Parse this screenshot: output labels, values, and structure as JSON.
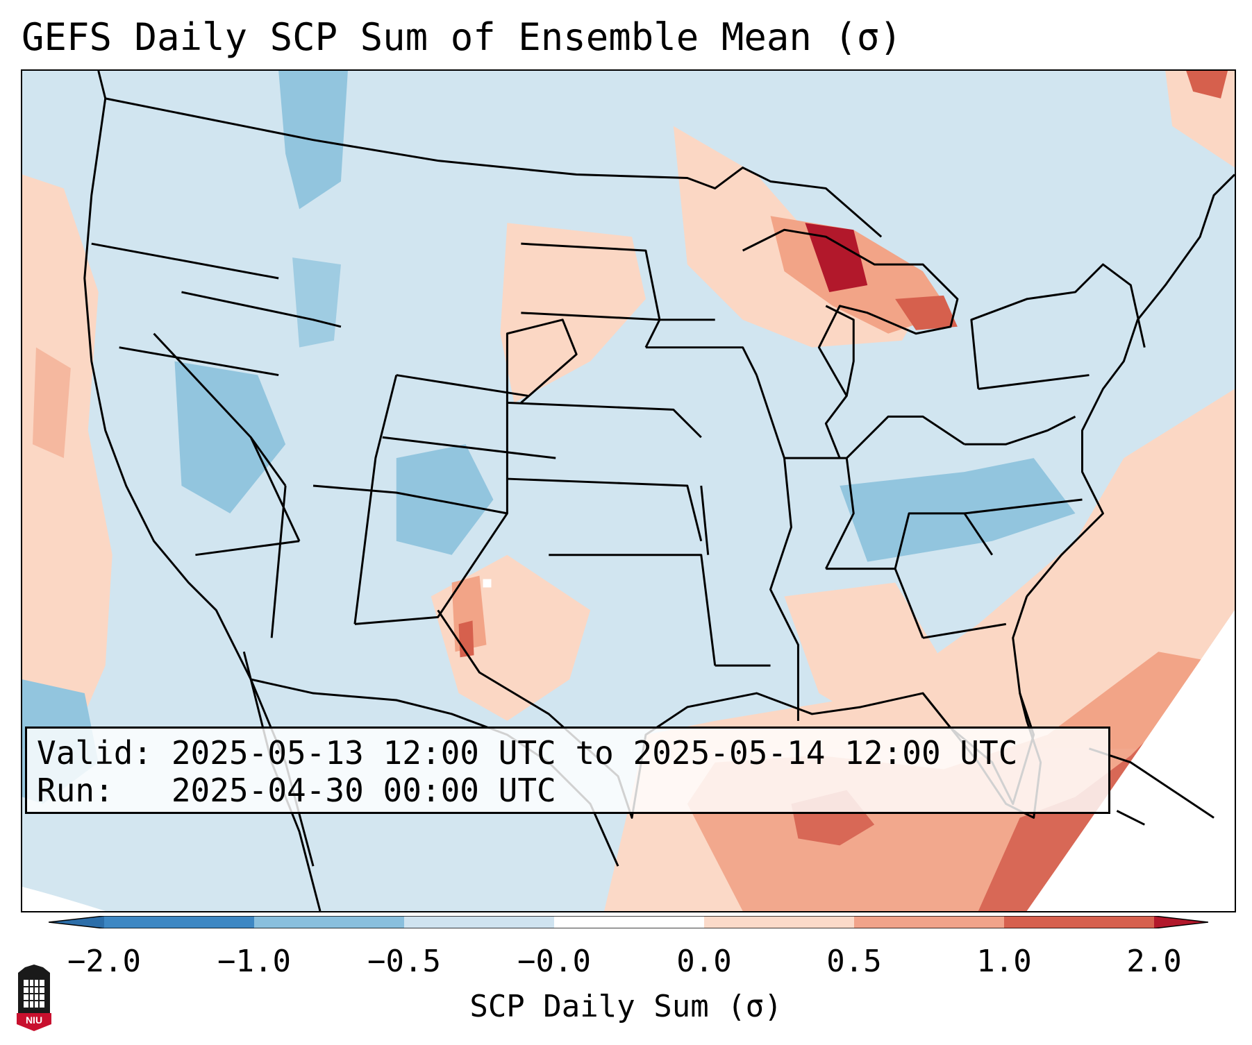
{
  "title": "GEFS Daily SCP Sum of Ensemble Mean (σ)",
  "info": {
    "valid_line": "Valid: 2025-05-13 12:00 UTC to 2025-05-14 12:00 UTC",
    "run_line": "Run:   2025-04-30 00:00 UTC"
  },
  "colorbar": {
    "label": "SCP Daily Sum (σ)",
    "ticks": [
      "−2.0",
      "−1.0",
      "−0.5",
      "−0.0",
      "0.0",
      "0.5",
      "1.0",
      "2.0"
    ],
    "colors": [
      "#3d87c3",
      "#89bfdd",
      "#cfe3f0",
      "#fbdac9",
      "#f1a38a",
      "#d6604e"
    ],
    "extend_low": "#2c6ea9",
    "extend_high": "#b2182b"
  },
  "map": {
    "projection": "Lambert Conformal",
    "region": "CONUS",
    "colors": {
      "neutral": "#d1e5f0",
      "light_blue": "#92c5de",
      "mid_blue": "#6ba7cd",
      "light_red": "#fbd7c4",
      "mid_red": "#f2a487",
      "red": "#d6604d",
      "dark_red": "#b2182b",
      "outline": "#000000"
    }
  },
  "logo": {
    "icon": "niu-logo-icon",
    "text": "NIU",
    "colors": {
      "tower": "#1a1a1a",
      "banner": "#c8102e"
    }
  }
}
